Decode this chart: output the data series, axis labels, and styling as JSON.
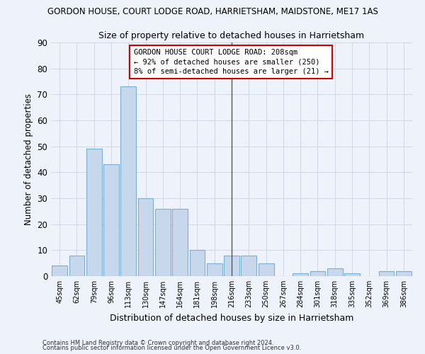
{
  "title": "GORDON HOUSE, COURT LODGE ROAD, HARRIETSHAM, MAIDSTONE, ME17 1AS",
  "subtitle": "Size of property relative to detached houses in Harrietsham",
  "xlabel": "Distribution of detached houses by size in Harrietsham",
  "ylabel": "Number of detached properties",
  "bar_color": "#c8d8ec",
  "bar_edge_color": "#7aafd4",
  "grid_color": "#d0d8e8",
  "background_color": "#eef2fa",
  "categories": [
    "45sqm",
    "62sqm",
    "79sqm",
    "96sqm",
    "113sqm",
    "130sqm",
    "147sqm",
    "164sqm",
    "181sqm",
    "198sqm",
    "216sqm",
    "233sqm",
    "250sqm",
    "267sqm",
    "284sqm",
    "301sqm",
    "318sqm",
    "335sqm",
    "352sqm",
    "369sqm",
    "386sqm"
  ],
  "values": [
    4,
    8,
    49,
    43,
    73,
    30,
    26,
    26,
    10,
    5,
    8,
    8,
    5,
    0,
    1,
    2,
    3,
    1,
    0,
    2,
    2
  ],
  "ylim": [
    0,
    90
  ],
  "yticks": [
    0,
    10,
    20,
    30,
    40,
    50,
    60,
    70,
    80,
    90
  ],
  "vline_index": 10.5,
  "annotation_text": "GORDON HOUSE COURT LODGE ROAD: 208sqm\n← 92% of detached houses are smaller (250)\n8% of semi-detached houses are larger (21) →",
  "annotation_box_facecolor": "#ffffff",
  "annotation_box_edgecolor": "#cc0000",
  "footer_line1": "Contains HM Land Registry data © Crown copyright and database right 2024.",
  "footer_line2": "Contains public sector information licensed under the Open Government Licence v3.0."
}
